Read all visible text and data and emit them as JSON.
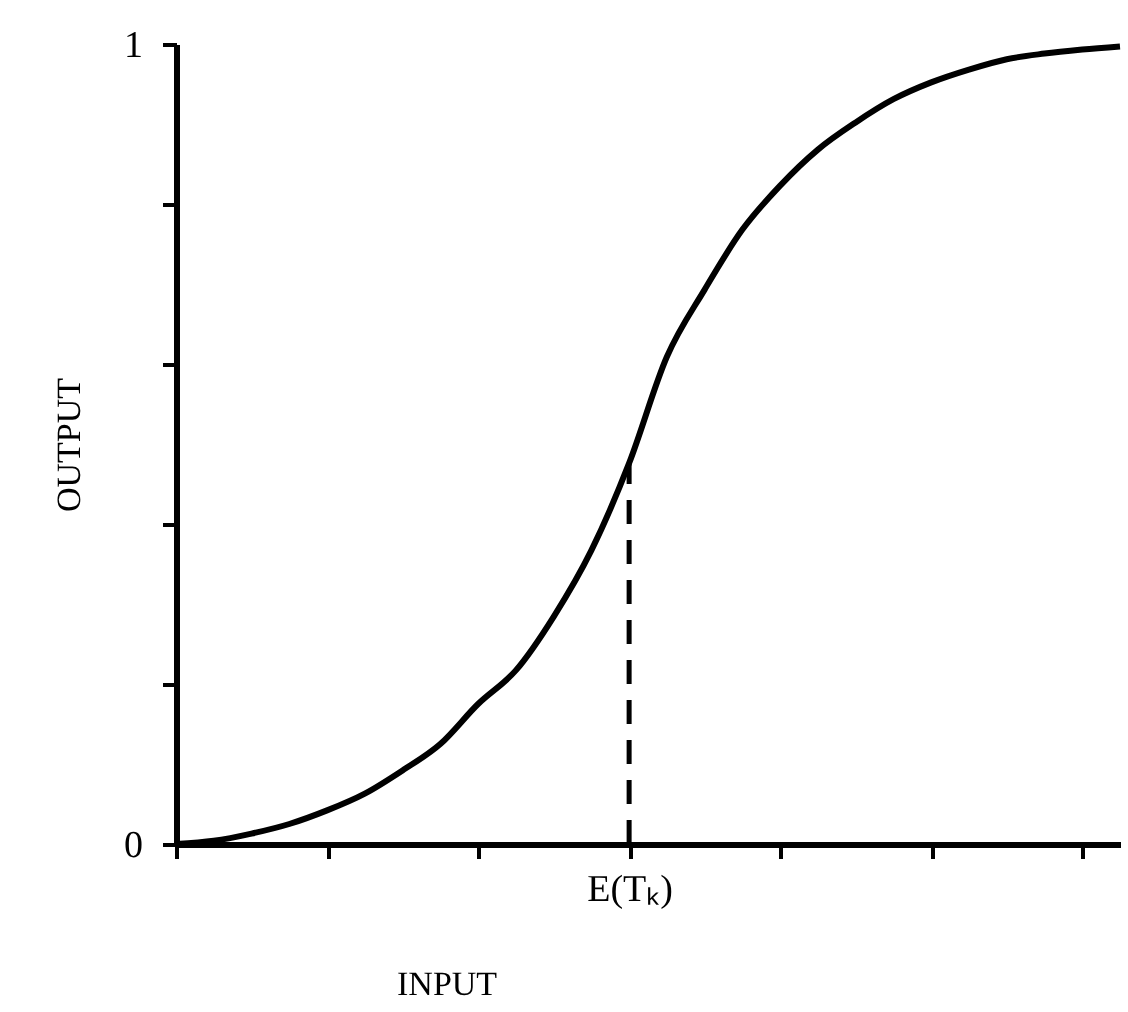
{
  "chart_data": {
    "type": "line",
    "xlabel": "INPUT",
    "ylabel": "OUTPUT",
    "color": "#000000",
    "categories": [
      null,
      null,
      null,
      null,
      null,
      null,
      null,
      null,
      null,
      null,
      null,
      null,
      "E(Tₖ)",
      null,
      null,
      null,
      null,
      null,
      null,
      null,
      null,
      null,
      null,
      null,
      null,
      null
    ],
    "values": [
      0,
      0.004,
      0.013,
      0.025,
      0.042,
      0.063,
      0.092,
      0.125,
      0.175,
      0.217,
      0.284,
      0.367,
      0.476,
      0.609,
      0.693,
      0.768,
      0.823,
      0.868,
      0.902,
      0.931,
      0.952,
      0.968,
      0.981,
      0.988,
      0.993,
      0.997
    ],
    "ylim": [
      0,
      1
    ],
    "yticks": [
      0,
      {
        "value": 0.2,
        "label": null
      },
      {
        "value": 0.4,
        "label": null
      },
      {
        "value": 0.6,
        "label": null
      },
      {
        "value": 0.8,
        "label": null
      },
      1
    ],
    "ref_lines": [
      {
        "axis": "x",
        "value": "E(Tₖ)",
        "line_style": "dashed"
      }
    ]
  }
}
